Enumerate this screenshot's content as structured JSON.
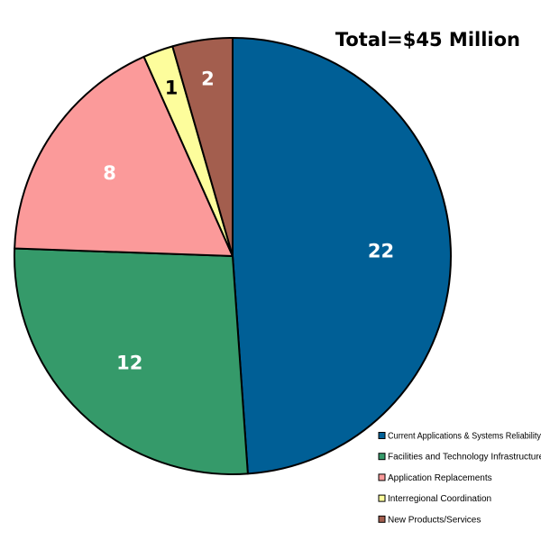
{
  "chart_data": {
    "type": "pie",
    "title": "Total=$45 Million",
    "categories": [
      "Current Applications & Systems Reliability",
      "Facilities and Technology Infrastructure",
      "Application Replacements",
      "Interregional Coordination",
      "New Products/Services"
    ],
    "values": [
      22,
      12,
      8,
      1,
      2
    ],
    "labels": [
      "22",
      "12",
      "8",
      "1",
      "2"
    ],
    "colors": [
      "#005f96",
      "#359a6a",
      "#fb9a9a",
      "#fdfd9c",
      "#a35e4e"
    ],
    "label_colors": [
      "#ffffff",
      "#ffffff",
      "#ffffff",
      "#000000",
      "#ffffff"
    ],
    "legend_position": "bottom-right",
    "start_angle_deg": 0,
    "direction": "clockwise"
  }
}
